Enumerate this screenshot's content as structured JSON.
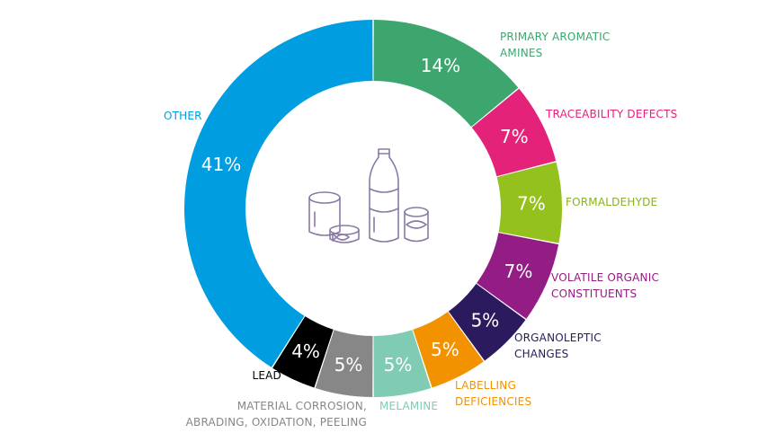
{
  "chart_data": {
    "type": "donut",
    "segments": [
      {
        "name": "PRIMARY AROMATIC AMINES",
        "label_lines": [
          "PRIMARY AROMATIC",
          "AMINES"
        ],
        "value": 14,
        "display": "14%",
        "color": "#3da66e",
        "text_color": "#3da66e"
      },
      {
        "name": "TRACEABILITY DEFECTS",
        "label_lines": [
          "TRACEABILITY DEFECTS"
        ],
        "value": 7,
        "display": "7%",
        "color": "#e4227a",
        "text_color": "#e4227a"
      },
      {
        "name": "FORMALDEHYDE",
        "label_lines": [
          "FORMALDEHYDE"
        ],
        "value": 7,
        "display": "7%",
        "color": "#95c11f",
        "text_color": "#8ab31a"
      },
      {
        "name": "VOLATILE ORGANIC CONSTITUENTS",
        "label_lines": [
          "VOLATILE ORGANIC",
          "CONSTITUENTS"
        ],
        "value": 7,
        "display": "7%",
        "color": "#941c85",
        "text_color": "#941c85"
      },
      {
        "name": "ORGANOLEPTIC CHANGES",
        "label_lines": [
          "ORGANOLEPTIC",
          "CHANGES"
        ],
        "value": 5,
        "display": "5%",
        "color": "#2b1b5e",
        "text_color": "#2b1b5e"
      },
      {
        "name": "LABELLING DEFICIENCIES",
        "label_lines": [
          "LABELLING",
          "DEFICIENCIES"
        ],
        "value": 5,
        "display": "5%",
        "color": "#f39200",
        "text_color": "#f39200"
      },
      {
        "name": "MELAMINE",
        "label_lines": [
          "MELAMINE"
        ],
        "value": 5,
        "display": "5%",
        "color": "#7fcbb4",
        "text_color": "#7fcbb4"
      },
      {
        "name": "MATERIAL CORROSION, ABRADING, OXIDATION, PEELING",
        "label_lines": [
          "MATERIAL CORROSION,",
          "ABRADING, OXIDATION, PEELING"
        ],
        "value": 5,
        "display": "5%",
        "color": "#878787",
        "text_color": "#878787"
      },
      {
        "name": "LEAD",
        "label_lines": [
          "LEAD"
        ],
        "value": 4,
        "display": "4%",
        "color": "#000000",
        "text_color": "#000000"
      },
      {
        "name": "OTHER",
        "label_lines": [
          "OTHER"
        ],
        "value": 41,
        "display": "41%",
        "color": "#009ee0",
        "text_color": "#009ee0"
      }
    ],
    "center_icon": "food-packaging-icon"
  }
}
